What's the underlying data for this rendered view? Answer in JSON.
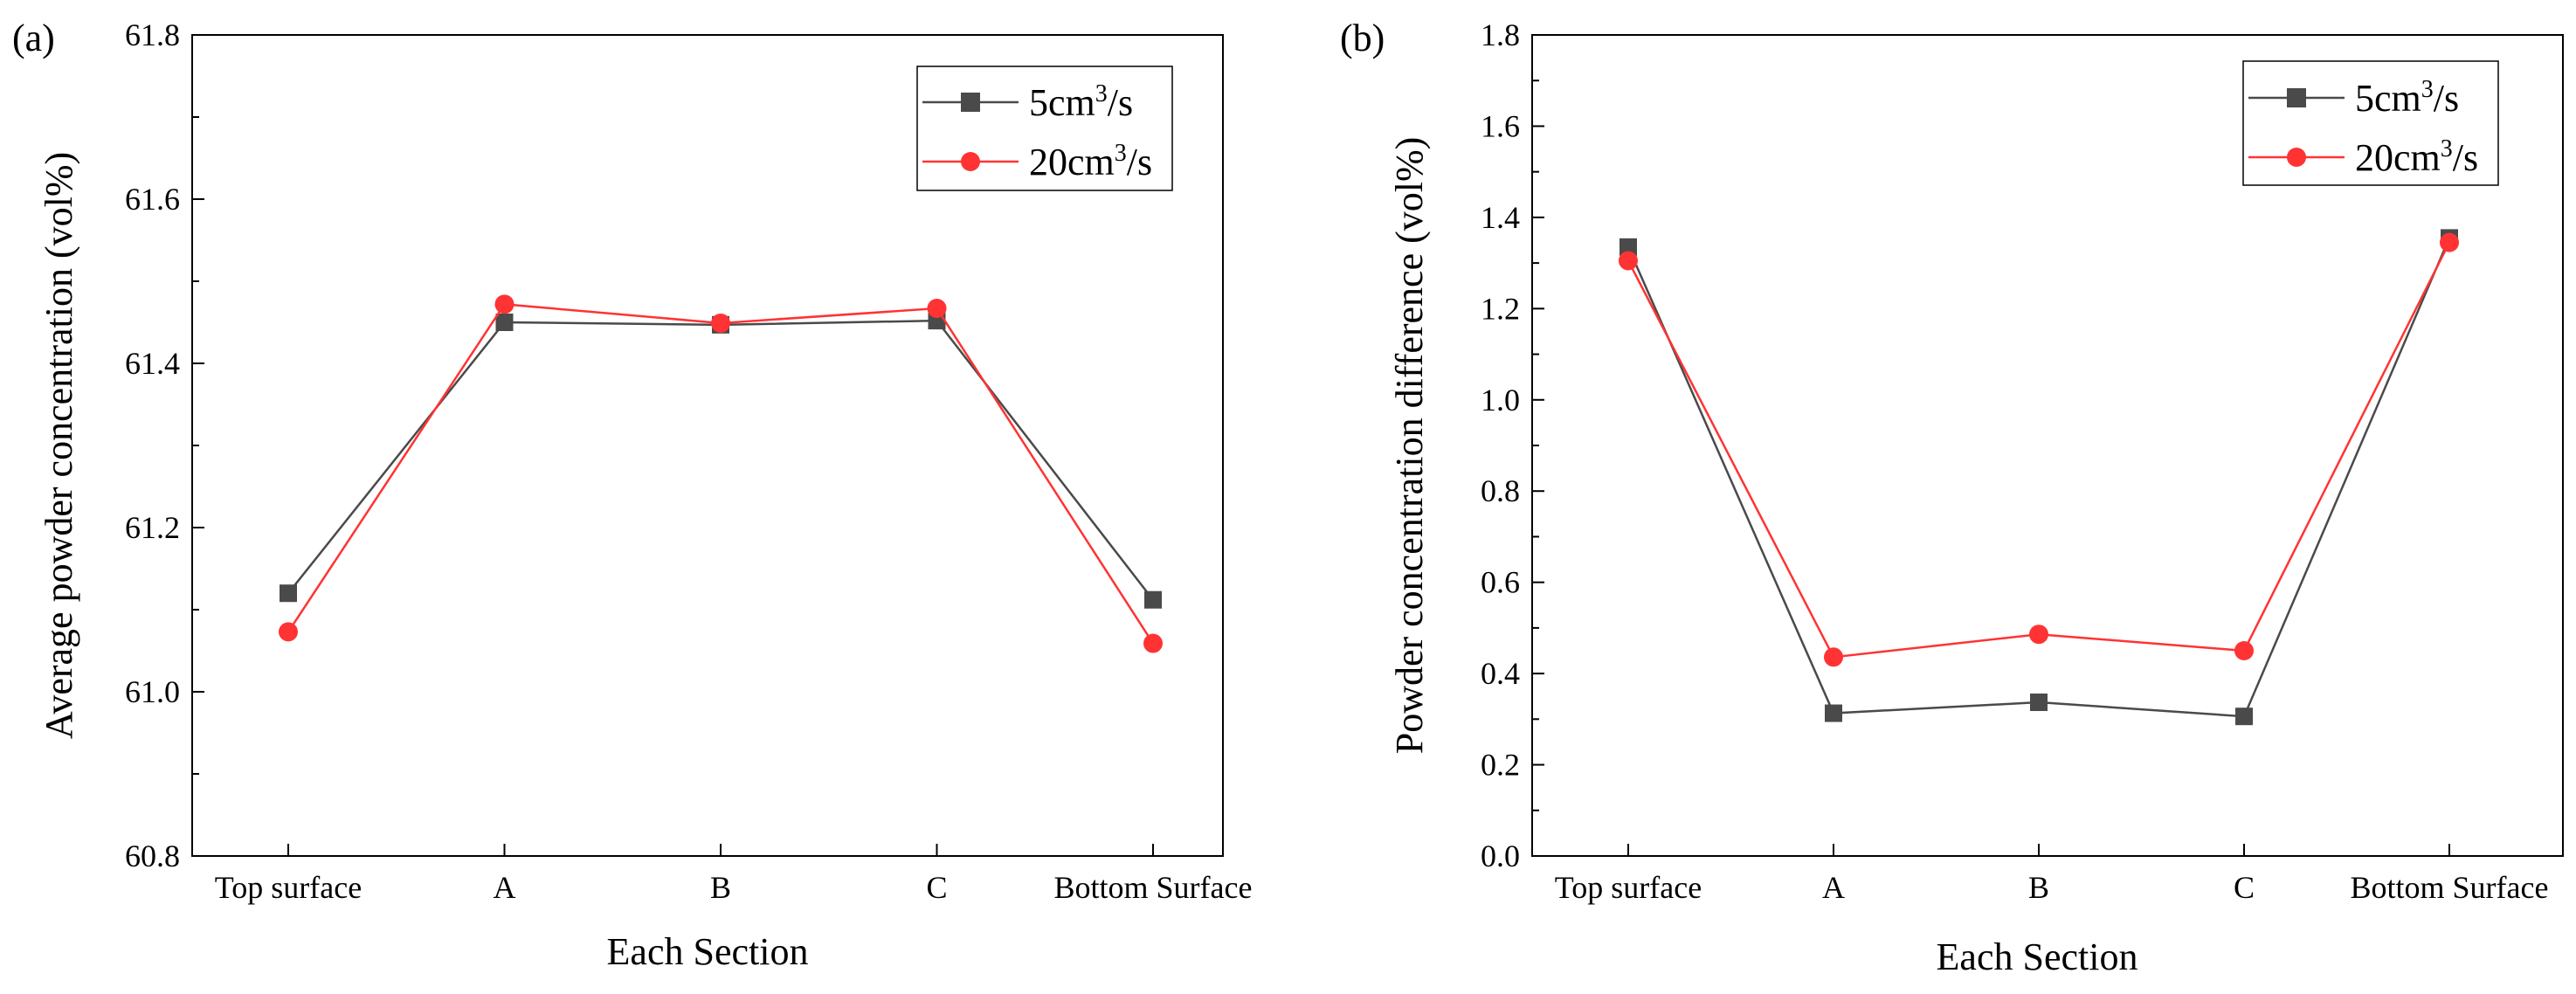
{
  "chart_data": [
    {
      "type": "line",
      "panel_label": "(a)",
      "title": "",
      "xlabel": "Each Section",
      "ylabel": "Average powder concentration (vol%)",
      "categories": [
        "Top surface",
        "A",
        "B",
        "C",
        "Bottom Surface"
      ],
      "ylim": [
        60.8,
        61.8
      ],
      "yticks": [
        "60.8",
        "61.0",
        "61.2",
        "61.4",
        "61.6",
        "61.8"
      ],
      "ytick_values": [
        60.8,
        61.0,
        61.2,
        61.4,
        61.6,
        61.8
      ],
      "grid": false,
      "legend_position": "top-right",
      "series": [
        {
          "name": "5cm3/s",
          "legend_base": "5cm",
          "legend_sup": "3",
          "legend_tail": "/s",
          "color": "#4a4a4a",
          "marker": "square",
          "values": [
            61.12,
            61.45,
            61.447,
            61.452,
            61.112
          ]
        },
        {
          "name": "20cm3/s",
          "legend_base": "20cm",
          "legend_sup": "3",
          "legend_tail": "/s",
          "color": "#ff3333",
          "marker": "circle",
          "values": [
            61.073,
            61.472,
            61.449,
            61.467,
            61.059
          ]
        }
      ]
    },
    {
      "type": "line",
      "panel_label": "(b)",
      "title": "",
      "xlabel": "Each Section",
      "ylabel": "Powder concentration difference (vol%)",
      "categories": [
        "Top surface",
        "A",
        "B",
        "C",
        "Bottom Surface"
      ],
      "ylim": [
        0.0,
        1.8
      ],
      "yticks": [
        "0.0",
        "0.2",
        "0.4",
        "0.6",
        "0.8",
        "1.0",
        "1.2",
        "1.4",
        "1.6",
        "1.8"
      ],
      "ytick_values": [
        0.0,
        0.2,
        0.4,
        0.6,
        0.8,
        1.0,
        1.2,
        1.4,
        1.6,
        1.8
      ],
      "grid": false,
      "legend_position": "top-right",
      "series": [
        {
          "name": "5cm3/s",
          "legend_base": "5cm",
          "legend_sup": "3",
          "legend_tail": "/s",
          "color": "#4a4a4a",
          "marker": "square",
          "values": [
            1.335,
            0.313,
            0.337,
            0.306,
            1.355
          ]
        },
        {
          "name": "20cm3/s",
          "legend_base": "20cm",
          "legend_sup": "3",
          "legend_tail": "/s",
          "color": "#ff3333",
          "marker": "circle",
          "values": [
            1.305,
            0.436,
            0.486,
            0.45,
            1.345
          ]
        }
      ]
    }
  ]
}
